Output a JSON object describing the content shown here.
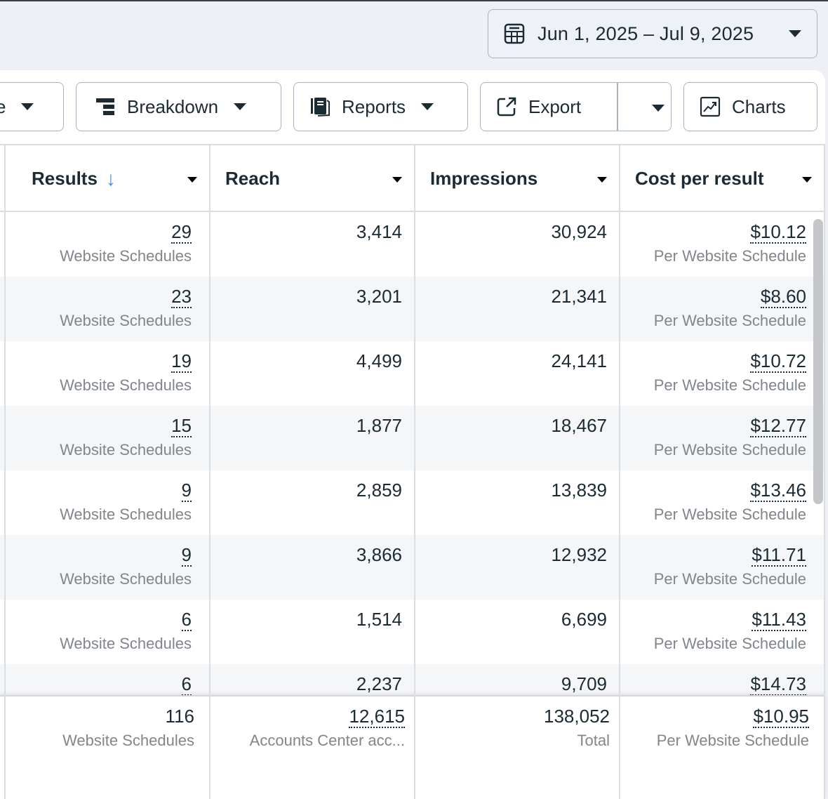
{
  "date_range": {
    "label": "Jun 1, 2025 – Jul 9, 2025",
    "icon": "calendar-icon"
  },
  "toolbar": {
    "truncated_button_label": "ce",
    "breakdown_label": "Breakdown",
    "reports_label": "Reports",
    "export_label": "Export",
    "charts_label": "Charts"
  },
  "table": {
    "columns": [
      {
        "label": "Results",
        "sorted": "descending"
      },
      {
        "label": "Reach"
      },
      {
        "label": "Impressions"
      },
      {
        "label": "Cost per result"
      }
    ],
    "rows": [
      {
        "results": "29",
        "results_sub": "Website Schedules",
        "reach": "3,414",
        "impressions": "30,924",
        "cost": "$10.12",
        "cost_sub": "Per Website Schedule"
      },
      {
        "results": "23",
        "results_sub": "Website Schedules",
        "reach": "3,201",
        "impressions": "21,341",
        "cost": "$8.60",
        "cost_sub": "Per Website Schedule"
      },
      {
        "results": "19",
        "results_sub": "Website Schedules",
        "reach": "4,499",
        "impressions": "24,141",
        "cost": "$10.72",
        "cost_sub": "Per Website Schedule"
      },
      {
        "results": "15",
        "results_sub": "Website Schedules",
        "reach": "1,877",
        "impressions": "18,467",
        "cost": "$12.77",
        "cost_sub": "Per Website Schedule"
      },
      {
        "results": "9",
        "results_sub": "Website Schedules",
        "reach": "2,859",
        "impressions": "13,839",
        "cost": "$13.46",
        "cost_sub": "Per Website Schedule"
      },
      {
        "results": "9",
        "results_sub": "Website Schedules",
        "reach": "3,866",
        "impressions": "12,932",
        "cost": "$11.71",
        "cost_sub": "Per Website Schedule"
      },
      {
        "results": "6",
        "results_sub": "Website Schedules",
        "reach": "1,514",
        "impressions": "6,699",
        "cost": "$11.43",
        "cost_sub": "Per Website Schedule"
      },
      {
        "results": "6",
        "results_sub": "Website Schedules",
        "reach": "2,237",
        "impressions": "9,709",
        "cost": "$14.73",
        "cost_sub": "Per Website Schedule"
      }
    ],
    "totals": {
      "results": "116",
      "results_sub": "Website Schedules",
      "reach": "12,615",
      "reach_sub": "Accounts Center acc...",
      "impressions": "138,052",
      "impressions_sub": "Total",
      "cost": "$10.95",
      "cost_sub": "Per Website Schedule"
    }
  },
  "colors": {
    "sort_arrow": "#4a86f7",
    "text": "#1c2b33",
    "subtext": "#80868c",
    "row_alt": "#f5f6f7"
  }
}
